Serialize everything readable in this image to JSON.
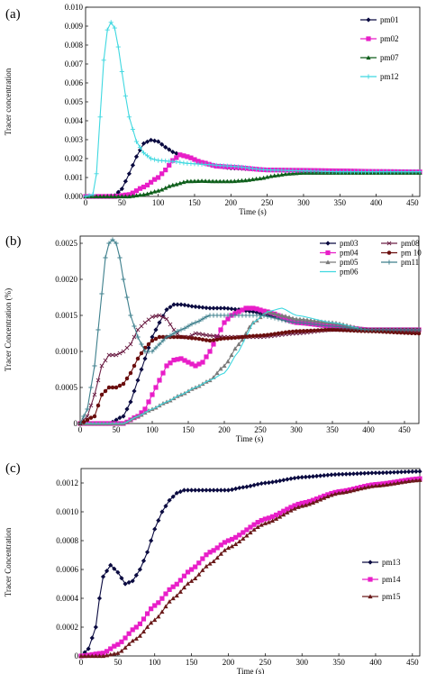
{
  "chart_data": [
    {
      "panel_label": "(a)",
      "type": "line",
      "xlabel": "Time  (s)",
      "ylabel": "Tracer concentration",
      "xlim": [
        0,
        460
      ],
      "ylim": [
        0,
        0.01
      ],
      "xticks": [
        "0",
        "50",
        "100",
        "150",
        "200",
        "250",
        "300",
        "350",
        "400",
        "450"
      ],
      "yticks": [
        "0.000",
        "0.001",
        "0.002",
        "0.003",
        "0.004",
        "0.005",
        "0.006",
        "0.007",
        "0.008",
        "0.009",
        "0.010"
      ],
      "legend_position": "top-right",
      "legend_cols": 1,
      "series": [
        {
          "name": "pm01",
          "color": "#0a0a40",
          "marker": "diamond",
          "x": [
            0,
            20,
            40,
            50,
            60,
            70,
            80,
            90,
            100,
            110,
            120,
            130,
            140,
            160,
            180,
            200,
            250,
            300,
            350,
            400,
            460
          ],
          "y": [
            0,
            0,
            5e-05,
            0.0004,
            0.0012,
            0.0021,
            0.0028,
            0.00298,
            0.0029,
            0.0026,
            0.00235,
            0.0022,
            0.0021,
            0.0018,
            0.0016,
            0.0015,
            0.0014,
            0.00135,
            0.00132,
            0.0013,
            0.0013
          ]
        },
        {
          "name": "pm02",
          "color": "#e81ec8",
          "marker": "square",
          "x": [
            0,
            40,
            60,
            80,
            100,
            110,
            120,
            130,
            140,
            160,
            180,
            200,
            250,
            300,
            350,
            400,
            460
          ],
          "y": [
            0,
            0,
            0.0001,
            0.0005,
            0.001,
            0.0014,
            0.0019,
            0.0022,
            0.0021,
            0.0018,
            0.0016,
            0.00155,
            0.0014,
            0.00138,
            0.00135,
            0.00132,
            0.0013
          ]
        },
        {
          "name": "pm07",
          "color": "#0d5e1a",
          "marker": "triangle",
          "x": [
            0,
            60,
            80,
            100,
            120,
            140,
            160,
            180,
            200,
            220,
            240,
            260,
            280,
            300,
            350,
            400,
            460
          ],
          "y": [
            0,
            0,
            0.0001,
            0.0003,
            0.0006,
            0.0008,
            0.00082,
            0.0008,
            0.0008,
            0.00085,
            0.00095,
            0.0011,
            0.0012,
            0.00125,
            0.00125,
            0.00125,
            0.00125
          ]
        },
        {
          "name": "pm12",
          "color": "#3fd8e0",
          "marker": "plus",
          "x": [
            0,
            10,
            15,
            20,
            25,
            30,
            35,
            40,
            45,
            50,
            55,
            60,
            70,
            80,
            90,
            100,
            120,
            140,
            160,
            200,
            250,
            300,
            350,
            400,
            460
          ],
          "y": [
            0,
            0.0001,
            0.0012,
            0.0042,
            0.0072,
            0.0088,
            0.0092,
            0.0089,
            0.0079,
            0.0066,
            0.0053,
            0.0042,
            0.0029,
            0.0023,
            0.002,
            0.0019,
            0.00185,
            0.00175,
            0.0017,
            0.0016,
            0.0014,
            0.00135,
            0.0013,
            0.0013,
            0.0013
          ]
        }
      ]
    },
    {
      "panel_label": "(b)",
      "type": "line",
      "xlabel": "Time (s)",
      "ylabel": "Tracer Concentration (%)",
      "xlim": [
        0,
        470
      ],
      "ylim": [
        0,
        0.0026
      ],
      "xticks": [
        "0",
        "50",
        "100",
        "150",
        "200",
        "250",
        "300",
        "350",
        "400",
        "450"
      ],
      "yticks": [
        "0",
        "0.0005",
        "0.0010",
        "0.0015",
        "0.0020",
        "0.0025"
      ],
      "legend_position": "top-right",
      "legend_cols": 2,
      "series": [
        {
          "name": "pm03",
          "color": "#0a0a40",
          "marker": "diamond",
          "x": [
            0,
            40,
            60,
            70,
            80,
            90,
            100,
            110,
            120,
            130,
            140,
            160,
            180,
            200,
            220,
            240,
            260,
            300,
            350,
            400,
            470
          ],
          "y": [
            0,
            0,
            0.0001,
            0.0003,
            0.0006,
            0.0009,
            0.0012,
            0.0014,
            0.00158,
            0.00165,
            0.00165,
            0.00162,
            0.0016,
            0.0016,
            0.00158,
            0.00155,
            0.0015,
            0.0014,
            0.00135,
            0.0013,
            0.0013
          ]
        },
        {
          "name": "pm04",
          "color": "#e81ec8",
          "marker": "square",
          "x": [
            0,
            60,
            80,
            90,
            100,
            110,
            120,
            130,
            140,
            150,
            160,
            170,
            180,
            190,
            200,
            210,
            220,
            230,
            240,
            260,
            300,
            350,
            400,
            470
          ],
          "y": [
            0,
            0,
            0.0001,
            0.0002,
            0.0004,
            0.0006,
            0.0008,
            0.00088,
            0.0009,
            0.00085,
            0.0008,
            0.00085,
            0.001,
            0.0012,
            0.0014,
            0.0015,
            0.00155,
            0.0016,
            0.0016,
            0.00155,
            0.0014,
            0.00135,
            0.0013,
            0.0013
          ]
        },
        {
          "name": "pm05",
          "color": "#7a7a7a",
          "marker": "triangle",
          "x": [
            0,
            60,
            80,
            100,
            120,
            140,
            160,
            180,
            200,
            220,
            240,
            260,
            280,
            300,
            350,
            400,
            470
          ],
          "y": [
            0,
            0,
            0.0001,
            0.0002,
            0.0003,
            0.0004,
            0.0005,
            0.0006,
            0.0008,
            0.0011,
            0.0014,
            0.00155,
            0.0015,
            0.00145,
            0.0014,
            0.0013,
            0.0013
          ]
        },
        {
          "name": "pm06",
          "color": "#3fd8e0",
          "marker": "none",
          "x": [
            0,
            60,
            80,
            100,
            120,
            140,
            160,
            180,
            200,
            220,
            230,
            240,
            260,
            280,
            300,
            350,
            400,
            470
          ],
          "y": [
            0,
            0,
            0.0001,
            0.0002,
            0.0003,
            0.0004,
            0.0005,
            0.0006,
            0.0007,
            0.001,
            0.0012,
            0.0014,
            0.00155,
            0.0016,
            0.0015,
            0.0014,
            0.0013,
            0.0013
          ]
        },
        {
          "name": "pm08",
          "color": "#6e2248",
          "marker": "x",
          "x": [
            0,
            10,
            20,
            30,
            40,
            50,
            60,
            70,
            80,
            90,
            100,
            110,
            120,
            130,
            140,
            150,
            160,
            180,
            200,
            250,
            300,
            350,
            400,
            470
          ],
          "y": [
            0,
            0.0001,
            0.0004,
            0.0008,
            0.00095,
            0.00095,
            0.001,
            0.0011,
            0.0013,
            0.0014,
            0.00148,
            0.0015,
            0.00145,
            0.0013,
            0.0012,
            0.0012,
            0.00125,
            0.00122,
            0.0012,
            0.0012,
            0.00125,
            0.0013,
            0.0013,
            0.0013
          ]
        },
        {
          "name": "pm 10",
          "color": "#6a0e0e",
          "marker": "circle",
          "x": [
            0,
            20,
            30,
            40,
            50,
            60,
            70,
            80,
            90,
            100,
            110,
            120,
            130,
            140,
            160,
            180,
            200,
            250,
            300,
            350,
            400,
            470
          ],
          "y": [
            0,
            0.0001,
            0.0004,
            0.0005,
            0.0005,
            0.00055,
            0.0007,
            0.0009,
            0.00105,
            0.00115,
            0.0012,
            0.0012,
            0.0012,
            0.0012,
            0.00118,
            0.00115,
            0.00118,
            0.00122,
            0.00128,
            0.0013,
            0.00128,
            0.00125
          ]
        },
        {
          "name": "pm11",
          "color": "#3d7f8c",
          "marker": "plus",
          "x": [
            0,
            10,
            20,
            30,
            35,
            40,
            45,
            50,
            55,
            60,
            70,
            80,
            90,
            100,
            110,
            120,
            140,
            160,
            180,
            200,
            250,
            300,
            350,
            400,
            470
          ],
          "y": [
            0,
            0.0002,
            0.0008,
            0.0018,
            0.0023,
            0.0025,
            0.00255,
            0.0025,
            0.0023,
            0.002,
            0.0015,
            0.0012,
            0.001,
            0.001,
            0.0011,
            0.0012,
            0.0013,
            0.0014,
            0.0015,
            0.0015,
            0.0015,
            0.0014,
            0.00135,
            0.0013,
            0.0013
          ]
        }
      ]
    },
    {
      "panel_label": "(c)",
      "type": "line",
      "xlabel": "Time (s)",
      "ylabel": "Tracer Concentration",
      "xlim": [
        0,
        460
      ],
      "ylim": [
        0,
        0.0013
      ],
      "xticks": [
        "0",
        "50",
        "100",
        "150",
        "200",
        "250",
        "300",
        "350",
        "400",
        "450"
      ],
      "yticks": [
        "0",
        "0.0002",
        "0.0004",
        "0.0006",
        "0.0008",
        "0.0010",
        "0.0012"
      ],
      "legend_position": "bottom-right",
      "legend_cols": 1,
      "series": [
        {
          "name": "pm13",
          "color": "#0a0a40",
          "marker": "diamond",
          "x": [
            0,
            10,
            20,
            25,
            30,
            40,
            50,
            60,
            70,
            80,
            90,
            100,
            110,
            120,
            130,
            140,
            150,
            160,
            170,
            180,
            200,
            220,
            250,
            300,
            350,
            400,
            460
          ],
          "y": [
            0,
            5e-05,
            0.0002,
            0.0004,
            0.00055,
            0.00063,
            0.00058,
            0.0005,
            0.00052,
            0.0006,
            0.00072,
            0.00088,
            0.001,
            0.00108,
            0.00113,
            0.00115,
            0.00115,
            0.00115,
            0.00115,
            0.00115,
            0.00115,
            0.00117,
            0.0012,
            0.00124,
            0.00126,
            0.00127,
            0.00128
          ]
        },
        {
          "name": "pm14",
          "color": "#e81ec8",
          "marker": "square",
          "x": [
            0,
            30,
            50,
            75,
            100,
            125,
            150,
            175,
            200,
            250,
            300,
            350,
            400,
            460
          ],
          "y": [
            0,
            2e-05,
            8e-05,
            0.0002,
            0.00035,
            0.00048,
            0.0006,
            0.00072,
            0.0008,
            0.00095,
            0.00106,
            0.00114,
            0.00119,
            0.00123
          ]
        },
        {
          "name": "pm15",
          "color": "#6a1a1a",
          "marker": "triangle",
          "x": [
            0,
            30,
            50,
            75,
            100,
            125,
            150,
            175,
            200,
            250,
            300,
            350,
            400,
            460
          ],
          "y": [
            0,
            0,
            2e-05,
            0.00012,
            0.00025,
            0.0004,
            0.00052,
            0.00064,
            0.00075,
            0.00092,
            0.00104,
            0.00113,
            0.00118,
            0.00122
          ]
        }
      ]
    }
  ]
}
